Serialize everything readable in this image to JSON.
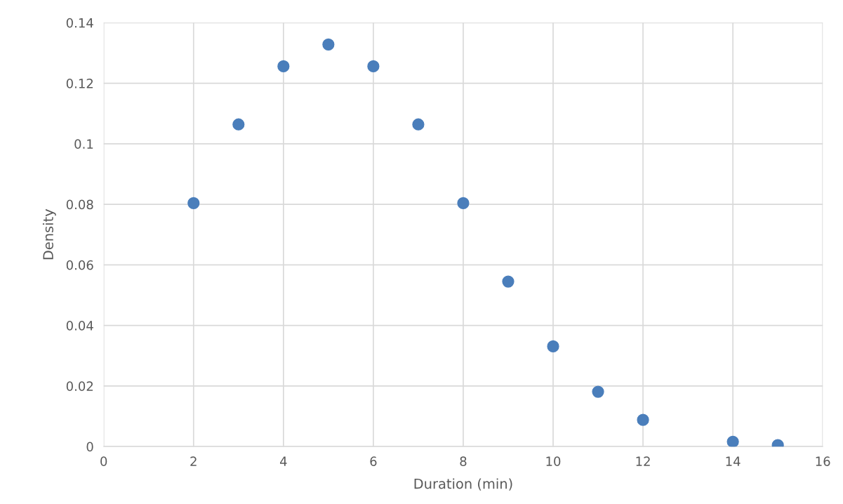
{
  "chart_data": {
    "type": "scatter",
    "xlabel": "Duration (min)",
    "ylabel": "Density",
    "x": [
      2,
      3,
      4,
      5,
      6,
      7,
      8,
      9,
      10,
      11,
      12,
      14,
      15
    ],
    "series": [
      {
        "color": "#4a7ebb",
        "values": [
          0.0804,
          0.1064,
          0.1256,
          0.1328,
          0.1256,
          0.1064,
          0.0804,
          0.0545,
          0.0331,
          0.0181,
          0.0088,
          0.0016,
          0.0005
        ]
      }
    ],
    "xlim": [
      0,
      16
    ],
    "xticks": [
      0,
      2,
      4,
      6,
      8,
      10,
      12,
      14,
      16
    ],
    "ylim": [
      0,
      0.14
    ],
    "yticks": [
      0,
      0.02,
      0.04,
      0.06,
      0.08,
      {
        "value": 0.1,
        "label": "0.1"
      },
      0.12,
      0.14
    ],
    "grid": true,
    "marker": "circle",
    "legend": false
  }
}
